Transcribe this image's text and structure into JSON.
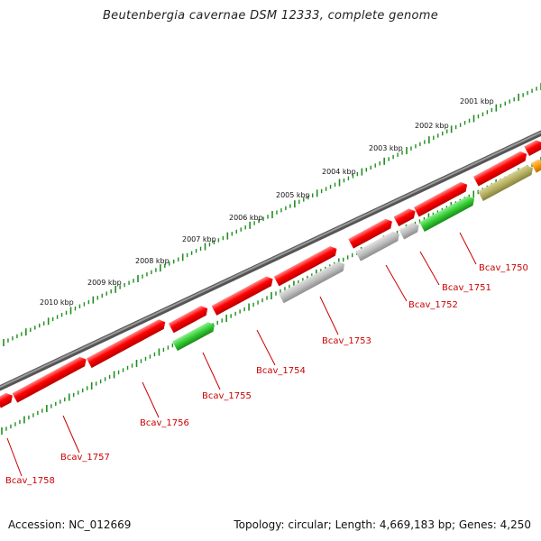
{
  "header": {
    "title": "Beutenbergia cavernae DSM 12333, complete genome"
  },
  "footer": {
    "accession": "Accession: NC_012669",
    "topology": "Topology: circular; Length: 4,669,183 bp; Genes: 4,250"
  },
  "ruler": {
    "labels": [
      "2001 kbp",
      "2002 kbp",
      "2003 kbp",
      "2004 kbp",
      "2005 kbp",
      "2006 kbp",
      "2007 kbp",
      "2008 kbp",
      "2009 kbp",
      "2010 kbp"
    ]
  },
  "genes": [
    {
      "label": "Bcav_1750"
    },
    {
      "label": "Bcav_1751"
    },
    {
      "label": "Bcav_1752"
    },
    {
      "label": "Bcav_1753"
    },
    {
      "label": "Bcav_1754"
    },
    {
      "label": "Bcav_1755"
    },
    {
      "label": "Bcav_1756"
    },
    {
      "label": "Bcav_1757"
    },
    {
      "label": "Bcav_1758"
    }
  ],
  "colors": {
    "forward_cds": "#ff0000",
    "reverse_gray": "#b8b8b8",
    "reverse_green": "#33cc33",
    "olive": "#b5b060",
    "orange": "#ff9900",
    "ruler": "#1a8a1a",
    "backbone": "#777777",
    "label": "#cc0000"
  }
}
